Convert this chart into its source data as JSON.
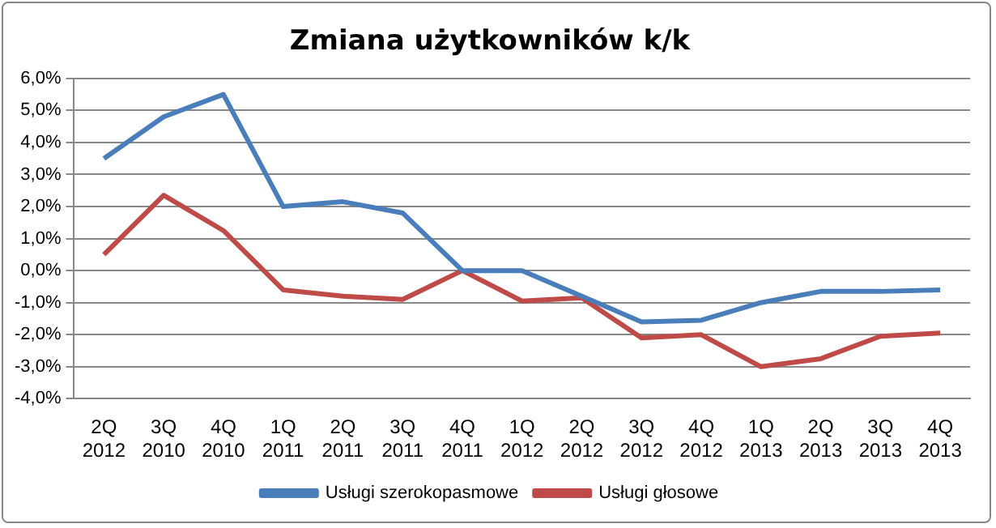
{
  "chart_data": {
    "type": "line",
    "title": "Zmiana użytkowników k/k",
    "categories": [
      "2Q 2012",
      "3Q 2010",
      "4Q 2010",
      "1Q 2011",
      "2Q 2011",
      "3Q 2011",
      "4Q 2011",
      "1Q 2012",
      "2Q 2012",
      "3Q 2012",
      "4Q 2012",
      "1Q 2013",
      "2Q 2013",
      "3Q 2013",
      "4Q 2013"
    ],
    "series": [
      {
        "name": "Usługi szerokopasmowe",
        "color": "#4a7ebb",
        "values": [
          3.5,
          4.8,
          5.5,
          2.0,
          2.15,
          1.8,
          0.0,
          0.0,
          -0.8,
          -1.6,
          -1.55,
          -1.0,
          -0.65,
          -0.65,
          -0.6
        ]
      },
      {
        "name": "Usługi głosowe",
        "color": "#be4b48",
        "values": [
          0.5,
          2.35,
          1.25,
          -0.6,
          -0.8,
          -0.9,
          0.0,
          -0.95,
          -0.85,
          -2.1,
          -2.0,
          -3.0,
          -2.75,
          -2.05,
          -1.95
        ]
      }
    ],
    "ylim": [
      -4,
      6
    ],
    "yticks": [
      {
        "value": -4,
        "label": "-4,0%"
      },
      {
        "value": -3,
        "label": "-3,0%"
      },
      {
        "value": -2,
        "label": "-2,0%"
      },
      {
        "value": -1,
        "label": "-1,0%"
      },
      {
        "value": 0,
        "label": "0,0%"
      },
      {
        "value": 1,
        "label": "1,0%"
      },
      {
        "value": 2,
        "label": "2,0%"
      },
      {
        "value": 3,
        "label": "3,0%"
      },
      {
        "value": 4,
        "label": "4,0%"
      },
      {
        "value": 5,
        "label": "5,0%"
      },
      {
        "value": 6,
        "label": "6,0%"
      }
    ],
    "grid": "y",
    "legend": "bottom",
    "marker": "none",
    "line_style": "solid"
  }
}
